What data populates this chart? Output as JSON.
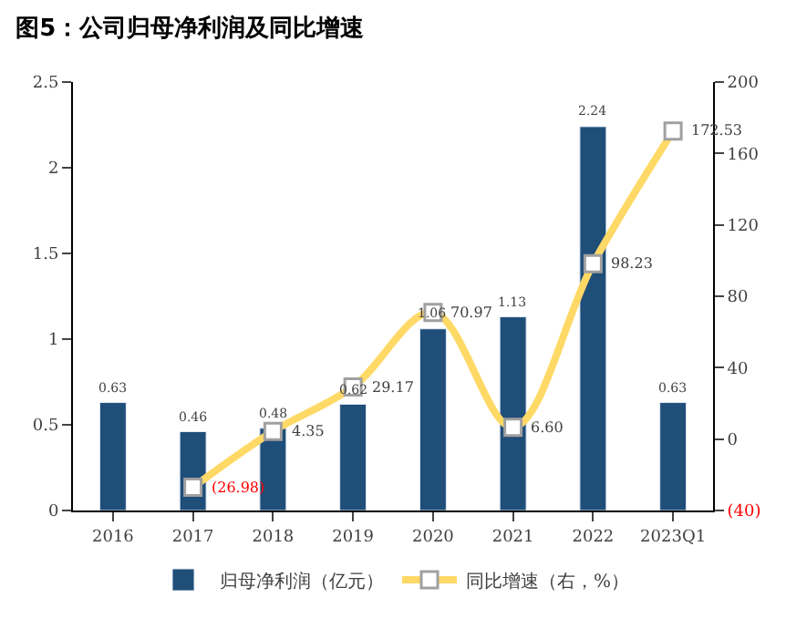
{
  "chart_data": {
    "type": "bar",
    "title": "图5：公司归母净利润及同比增速",
    "categories": [
      "2016",
      "2017",
      "2018",
      "2019",
      "2020",
      "2021",
      "2022",
      "2023Q1"
    ],
    "series": [
      {
        "name": "归母净利润（亿元）",
        "color": "#1f4e79",
        "values": [
          0.63,
          0.46,
          0.48,
          0.62,
          1.06,
          1.13,
          2.24,
          0.63
        ],
        "data_labels": true
      },
      {
        "name": "同比增速（右，%）",
        "type": "line",
        "axis": "y2",
        "color": "#ffd966",
        "marker": "square",
        "values": [
          null,
          -26.98,
          4.35,
          29.17,
          70.97,
          6.6,
          98.23,
          172.53
        ],
        "value_labels": [
          null,
          "(26.98)",
          "4.35",
          "29.17",
          "70.97",
          "6.60",
          "98.23",
          "172.53"
        ]
      }
    ],
    "ylim": [
      0,
      2.5
    ],
    "yticks": [
      0,
      0.5,
      1,
      1.5,
      2,
      2.5
    ],
    "y2lim": [
      -40,
      200
    ],
    "y2ticks": [
      {
        "value": -40,
        "label": "(40)"
      },
      0,
      40,
      80,
      120,
      160,
      200
    ],
    "legend": "bottom"
  }
}
